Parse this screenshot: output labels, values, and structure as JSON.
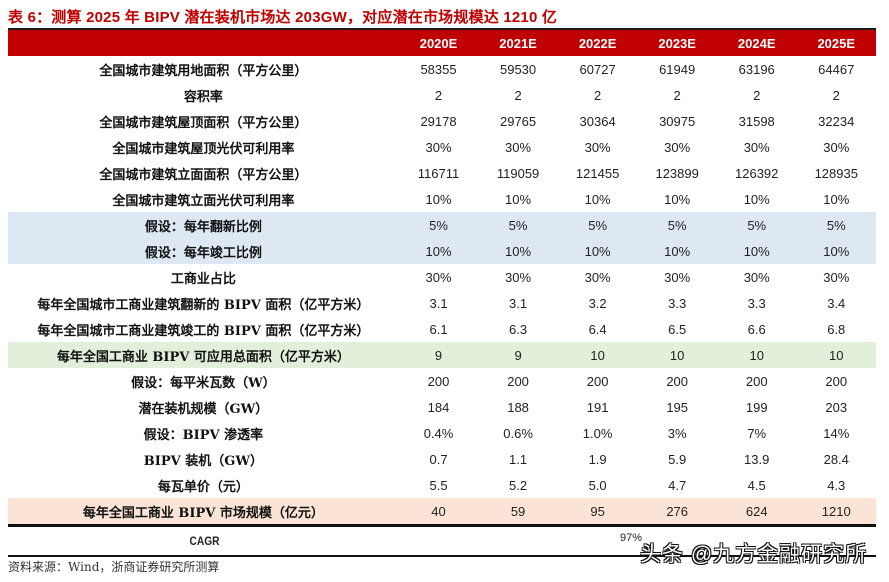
{
  "title": "表 6：测算 2025 年 BIPV 潜在装机市场达 203GW，对应潜在市场规模达 1210 亿",
  "colors": {
    "header_bg": "#c00000",
    "assumption_bg": "#dde8f3",
    "total_area_bg": "#e2efda",
    "market_size_bg": "#fbe4d5"
  },
  "table": {
    "columns": [
      "2020E",
      "2021E",
      "2022E",
      "2023E",
      "2024E",
      "2025E"
    ],
    "rows": [
      {
        "label": "全国城市建筑用地面积（平方公里）",
        "values": [
          "58355",
          "59530",
          "60727",
          "61949",
          "63196",
          "64467"
        ]
      },
      {
        "label": "容积率",
        "values": [
          "2",
          "2",
          "2",
          "2",
          "2",
          "2"
        ]
      },
      {
        "label": "全国城市建筑屋顶面积（平方公里）",
        "values": [
          "29178",
          "29765",
          "30364",
          "30975",
          "31598",
          "32234"
        ]
      },
      {
        "label": "全国城市建筑屋顶光伏可利用率",
        "values": [
          "30%",
          "30%",
          "30%",
          "30%",
          "30%",
          "30%"
        ]
      },
      {
        "label": "全国城市建筑立面面积（平方公里）",
        "values": [
          "116711",
          "119059",
          "121455",
          "123899",
          "126392",
          "128935"
        ]
      },
      {
        "label": "全国城市建筑立面光伏可利用率",
        "values": [
          "10%",
          "10%",
          "10%",
          "10%",
          "10%",
          "10%"
        ]
      },
      {
        "label": "假设：每年翻新比例",
        "values": [
          "5%",
          "5%",
          "5%",
          "5%",
          "5%",
          "5%"
        ]
      },
      {
        "label": "假设：每年竣工比例",
        "values": [
          "10%",
          "10%",
          "10%",
          "10%",
          "10%",
          "10%"
        ]
      },
      {
        "label": "工商业占比",
        "values": [
          "30%",
          "30%",
          "30%",
          "30%",
          "30%",
          "30%"
        ]
      },
      {
        "label": "每年全国城市工商业建筑翻新的 BIPV 面积（亿平方米）",
        "values": [
          "3.1",
          "3.1",
          "3.2",
          "3.3",
          "3.3",
          "3.4"
        ]
      },
      {
        "label": "每年全国城市工商业建筑竣工的 BIPV 面积（亿平方米）",
        "values": [
          "6.1",
          "6.3",
          "6.4",
          "6.5",
          "6.6",
          "6.8"
        ]
      },
      {
        "label": "每年全国工商业 BIPV 可应用总面积（亿平方米）",
        "values": [
          "9",
          "9",
          "10",
          "10",
          "10",
          "10"
        ]
      },
      {
        "label": "假设：每平米瓦数（W）",
        "values": [
          "200",
          "200",
          "200",
          "200",
          "200",
          "200"
        ]
      },
      {
        "label": "潜在装机规模（GW）",
        "values": [
          "184",
          "188",
          "191",
          "195",
          "199",
          "203"
        ]
      },
      {
        "label": "假设：BIPV 渗透率",
        "values": [
          "0.4%",
          "0.6%",
          "1.0%",
          "3%",
          "7%",
          "14%"
        ]
      },
      {
        "label": "BIPV 装机（GW）",
        "values": [
          "0.7",
          "1.1",
          "1.9",
          "5.9",
          "13.9",
          "28.4"
        ]
      },
      {
        "label": "每瓦单价（元）",
        "values": [
          "5.5",
          "5.2",
          "5.0",
          "4.7",
          "4.5",
          "4.3"
        ]
      },
      {
        "label": "每年全国工商业 BIPV 市场规模（亿元）",
        "values": [
          "40",
          "59",
          "95",
          "276",
          "624",
          "1210"
        ]
      }
    ],
    "cagr": {
      "label": "CAGR",
      "value": "97%"
    }
  },
  "source": "资料来源：Wind，浙商证券研究所测算",
  "watermark": "头条 @九方金融研究所"
}
